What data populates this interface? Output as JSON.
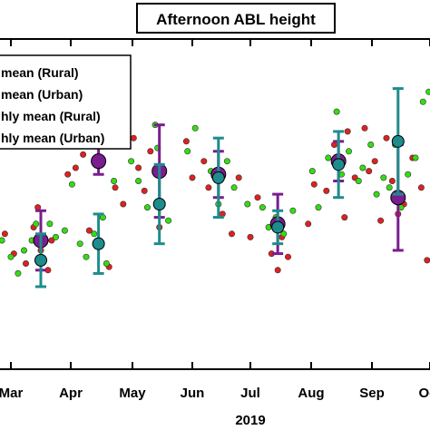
{
  "chart_data": {
    "type": "scatter",
    "title": "Afternoon ABL height",
    "xlabel": "2019",
    "ylabel": "",
    "x_ticks": [
      "Mar",
      "Apr",
      "May",
      "Jun",
      "Jul",
      "Aug",
      "Sep",
      "Oct"
    ],
    "xlim": [
      0,
      7.4
    ],
    "ylim": [
      0,
      10
    ],
    "grid": false,
    "legend_position": "top-left",
    "colors": {
      "daily_rural": "#e02020",
      "daily_urban": "#33dd11",
      "monthly_rural": "#7a1d8f",
      "monthly_urban": "#1e8c8c"
    },
    "legend": [
      {
        "label": "mean (Rural)",
        "type": "dot",
        "color": "#e02020"
      },
      {
        "label": "mean (Urban)",
        "type": "dot",
        "color": "#33dd11"
      },
      {
        "label": "hly mean (Rural)",
        "type": "errorbar",
        "color": "#7a1d8f"
      },
      {
        "label": "hly mean (Urban)",
        "type": "errorbar",
        "color": "#1e8c8c"
      }
    ],
    "series": [
      {
        "name": "mean (Rural)",
        "color": "#e02020",
        "points": [
          [
            -0.1,
            4.1
          ],
          [
            0.05,
            3.5
          ],
          [
            0.25,
            3.2
          ],
          [
            0.38,
            4.3
          ],
          [
            0.45,
            4.9
          ],
          [
            0.5,
            3.6
          ],
          [
            0.62,
            3.0
          ],
          [
            0.68,
            3.9
          ],
          [
            0.95,
            5.9
          ],
          [
            1.08,
            6.1
          ],
          [
            1.2,
            6.5
          ],
          [
            1.3,
            4.2
          ],
          [
            1.45,
            3.7
          ],
          [
            1.62,
            3.1
          ],
          [
            1.72,
            5.5
          ],
          [
            1.85,
            5.0
          ],
          [
            2.02,
            7.0
          ],
          [
            2.1,
            6.1
          ],
          [
            2.2,
            5.4
          ],
          [
            2.3,
            6.6
          ],
          [
            2.45,
            4.3
          ],
          [
            2.9,
            6.9
          ],
          [
            3.0,
            5.8
          ],
          [
            3.2,
            6.3
          ],
          [
            3.28,
            5.5
          ],
          [
            3.52,
            4.7
          ],
          [
            3.68,
            4.1
          ],
          [
            3.8,
            5.8
          ],
          [
            4.0,
            4.0
          ],
          [
            4.12,
            5.2
          ],
          [
            4.35,
            3.5
          ],
          [
            4.45,
            3.0
          ],
          [
            4.52,
            4.0
          ],
          [
            4.62,
            3.4
          ],
          [
            4.95,
            4.4
          ],
          [
            5.05,
            5.6
          ],
          [
            5.25,
            5.4
          ],
          [
            5.38,
            6.8
          ],
          [
            5.48,
            6.3
          ],
          [
            5.55,
            4.6
          ],
          [
            5.6,
            7.2
          ],
          [
            5.72,
            5.8
          ],
          [
            5.88,
            7.3
          ],
          [
            5.95,
            6.0
          ],
          [
            6.05,
            6.3
          ],
          [
            6.15,
            4.5
          ],
          [
            6.25,
            7.0
          ],
          [
            6.35,
            5.7
          ],
          [
            6.45,
            4.7
          ],
          [
            6.55,
            5.0
          ],
          [
            6.7,
            6.4
          ],
          [
            6.85,
            5.5
          ],
          [
            6.95,
            3.3
          ],
          [
            7.15,
            4.7
          ],
          [
            7.25,
            6.9
          ]
        ]
      },
      {
        "name": "mean (Urban)",
        "color": "#33dd11",
        "points": [
          [
            -0.15,
            3.9
          ],
          [
            0.0,
            3.4
          ],
          [
            0.12,
            2.9
          ],
          [
            0.22,
            3.6
          ],
          [
            0.35,
            3.9
          ],
          [
            0.42,
            4.4
          ],
          [
            0.55,
            3.3
          ],
          [
            0.65,
            4.4
          ],
          [
            0.75,
            4.0
          ],
          [
            0.9,
            4.2
          ],
          [
            1.02,
            5.6
          ],
          [
            1.15,
            3.8
          ],
          [
            1.25,
            3.4
          ],
          [
            1.38,
            4.1
          ],
          [
            1.52,
            4.6
          ],
          [
            1.58,
            3.2
          ],
          [
            1.7,
            5.7
          ],
          [
            1.98,
            6.3
          ],
          [
            2.1,
            5.7
          ],
          [
            2.25,
            4.9
          ],
          [
            2.38,
            7.4
          ],
          [
            2.42,
            6.7
          ],
          [
            2.5,
            5.0
          ],
          [
            2.6,
            4.5
          ],
          [
            2.92,
            6.6
          ],
          [
            3.05,
            7.3
          ],
          [
            3.32,
            6.0
          ],
          [
            3.45,
            5.0
          ],
          [
            3.6,
            6.3
          ],
          [
            3.72,
            5.5
          ],
          [
            3.95,
            5.0
          ],
          [
            4.2,
            4.9
          ],
          [
            4.3,
            4.3
          ],
          [
            4.42,
            4.6
          ],
          [
            4.55,
            4.1
          ],
          [
            4.7,
            4.8
          ],
          [
            5.02,
            6.0
          ],
          [
            5.12,
            4.9
          ],
          [
            5.28,
            6.4
          ],
          [
            5.42,
            7.8
          ],
          [
            5.5,
            5.9
          ],
          [
            5.62,
            6.6
          ],
          [
            5.78,
            5.7
          ],
          [
            5.85,
            6.1
          ],
          [
            5.98,
            6.8
          ],
          [
            6.08,
            5.3
          ],
          [
            6.2,
            5.8
          ],
          [
            6.3,
            5.5
          ],
          [
            6.4,
            6.8
          ],
          [
            6.5,
            4.9
          ],
          [
            6.62,
            5.9
          ],
          [
            6.75,
            6.4
          ],
          [
            6.88,
            8.1
          ],
          [
            6.98,
            8.4
          ],
          [
            7.1,
            7.0
          ],
          [
            7.2,
            5.5
          ],
          [
            7.3,
            8.9
          ]
        ]
      },
      {
        "name": "hly mean (Rural)",
        "color": "#7a1d8f",
        "points": [
          {
            "x": 0.5,
            "y": 3.9,
            "err": 0.9
          },
          {
            "x": 1.45,
            "y": 6.3,
            "err": 0.4
          },
          {
            "x": 2.45,
            "y": 6.0,
            "err": 1.4
          },
          {
            "x": 3.45,
            "y": 5.9,
            "err": 0.7
          },
          {
            "x": 4.45,
            "y": 4.4,
            "err": 0.9
          },
          {
            "x": 5.45,
            "y": 6.3,
            "err": 0.6
          },
          {
            "x": 6.45,
            "y": 5.2,
            "err": 1.6
          }
        ]
      },
      {
        "name": "hly mean (Urban)",
        "color": "#1e8c8c",
        "points": [
          {
            "x": 0.5,
            "y": 3.3,
            "err": 0.8
          },
          {
            "x": 1.45,
            "y": 3.8,
            "err": 0.9
          },
          {
            "x": 2.45,
            "y": 5.0,
            "err": 1.2
          },
          {
            "x": 3.45,
            "y": 5.8,
            "err": 1.2
          },
          {
            "x": 4.45,
            "y": 4.3,
            "err": 0.5
          },
          {
            "x": 5.45,
            "y": 6.2,
            "err": 1.0
          },
          {
            "x": 6.45,
            "y": 6.9,
            "err": 1.6
          }
        ]
      }
    ]
  }
}
